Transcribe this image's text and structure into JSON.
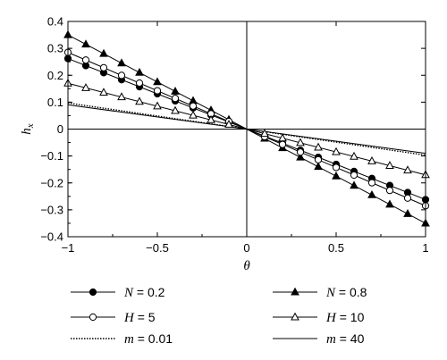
{
  "chart_data": {
    "type": "line",
    "title": "",
    "xlabel": "θ",
    "ylabel": "h",
    "ylabel_sub": "x",
    "xlim": [
      -1,
      1
    ],
    "ylim": [
      -0.4,
      0.4
    ],
    "xticks": [
      -1,
      -0.5,
      0,
      0.5,
      1
    ],
    "xtick_labels": [
      "−1",
      "−0.5",
      "0",
      "0.5",
      "1"
    ],
    "yticks": [
      0.4,
      0.3,
      0.2,
      0.1,
      0,
      -0.1,
      -0.2,
      -0.3,
      -0.4
    ],
    "ytick_labels": [
      "0.4",
      "0.3",
      "0.2",
      "0.1",
      "0",
      "−0.1",
      "−0.2",
      "−0.3",
      "−0.4"
    ],
    "zero_lines": true,
    "grid": false,
    "legend_position": "bottom",
    "series": [
      {
        "var": "N",
        "value": "0.2",
        "label": "N = 0.2",
        "style": "solid",
        "marker": "filled-circle",
        "x": [
          -1,
          1
        ],
        "y": [
          0.262,
          -0.262
        ]
      },
      {
        "var": "N",
        "value": "0.8",
        "label": "N = 0.8",
        "style": "solid",
        "marker": "filled-triangle",
        "x": [
          -1,
          1
        ],
        "y": [
          0.35,
          -0.35
        ]
      },
      {
        "var": "H",
        "value": "5",
        "label": "H = 5",
        "style": "solid",
        "marker": "open-circle",
        "x": [
          -1,
          1
        ],
        "y": [
          0.285,
          -0.285
        ]
      },
      {
        "var": "H",
        "value": "10",
        "label": "H = 10",
        "style": "solid",
        "marker": "open-triangle",
        "x": [
          -1,
          1
        ],
        "y": [
          0.17,
          -0.17
        ]
      },
      {
        "var": "m",
        "value": "0.01",
        "label": "m = 0.01",
        "style": "dotted",
        "marker": "none",
        "x": [
          -1,
          1
        ],
        "y": [
          0.097,
          -0.097
        ]
      },
      {
        "var": "m",
        "value": "40",
        "label": "m = 40",
        "style": "solid",
        "marker": "none",
        "x": [
          -1,
          1
        ],
        "y": [
          0.09,
          -0.09
        ]
      }
    ]
  }
}
